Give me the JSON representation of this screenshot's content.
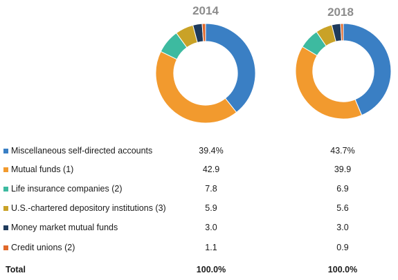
{
  "chart_data": {
    "type": "pie",
    "categories": [
      "Miscellaneous self-directed accounts",
      "Mutual funds (1)",
      "Life insurance companies (2)",
      "U.S.-chartered depository institutions (3)",
      "Money market mutual funds",
      "Credit unions (2)"
    ],
    "colors": [
      "#3a7fc4",
      "#f29a2e",
      "#3dbaa0",
      "#c9a227",
      "#1f3b5c",
      "#e0682a"
    ],
    "series": [
      {
        "name": "2014",
        "values": [
          39.4,
          42.9,
          7.8,
          5.9,
          3.0,
          1.1
        ]
      },
      {
        "name": "2018",
        "values": [
          43.7,
          39.9,
          6.9,
          5.6,
          3.0,
          0.9
        ]
      }
    ]
  },
  "table": {
    "rows": [
      {
        "label": "Miscellaneous self-directed accounts",
        "v2014": "39.4%",
        "v2018": "43.7%"
      },
      {
        "label": "Mutual funds (1)",
        "v2014": "42.9",
        "v2018": "39.9"
      },
      {
        "label": "Life insurance companies (2)",
        "v2014": "7.8",
        "v2018": "6.9"
      },
      {
        "label": "U.S.-chartered depository institutions (3)",
        "v2014": "5.9",
        "v2018": "5.6"
      },
      {
        "label": "Money market mutual funds",
        "v2014": "3.0",
        "v2018": "3.0"
      },
      {
        "label": "Credit unions (2)",
        "v2014": "1.1",
        "v2018": "0.9"
      }
    ],
    "total": {
      "label": "Total",
      "v2014": "100.0%",
      "v2018": "100.0%"
    }
  }
}
